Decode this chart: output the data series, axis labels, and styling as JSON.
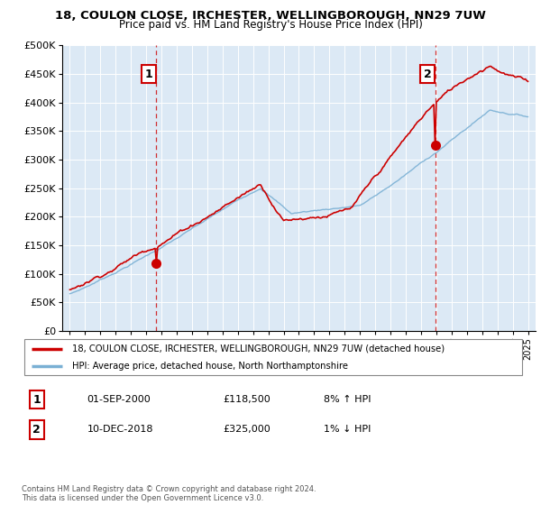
{
  "title_line1": "18, COULON CLOSE, IRCHESTER, WELLINGBOROUGH, NN29 7UW",
  "title_line2": "Price paid vs. HM Land Registry's House Price Index (HPI)",
  "ylabel_ticks": [
    "£0",
    "£50K",
    "£100K",
    "£150K",
    "£200K",
    "£250K",
    "£300K",
    "£350K",
    "£400K",
    "£450K",
    "£500K"
  ],
  "ytick_values": [
    0,
    50000,
    100000,
    150000,
    200000,
    250000,
    300000,
    350000,
    400000,
    450000,
    500000
  ],
  "ylim": [
    0,
    500000
  ],
  "xlim_start": 1994.5,
  "xlim_end": 2025.5,
  "sale1_x": 2000.67,
  "sale1_y": 118500,
  "sale1_label": "1",
  "sale2_x": 2018.92,
  "sale2_y": 325000,
  "sale2_label": "2",
  "legend_line1": "18, COULON CLOSE, IRCHESTER, WELLINGBOROUGH, NN29 7UW (detached house)",
  "legend_line2": "HPI: Average price, detached house, North Northamptonshire",
  "annotation1_date": "01-SEP-2000",
  "annotation1_price": "£118,500",
  "annotation1_hpi": "8% ↑ HPI",
  "annotation2_date": "10-DEC-2018",
  "annotation2_price": "£325,000",
  "annotation2_hpi": "1% ↓ HPI",
  "footer": "Contains HM Land Registry data © Crown copyright and database right 2024.\nThis data is licensed under the Open Government Licence v3.0.",
  "line_color_property": "#cc0000",
  "line_color_hpi": "#7ab0d4",
  "plot_bg_color": "#dce9f5",
  "vline_color": "#cc0000",
  "grid_color": "#ffffff",
  "marker_fill": "#cc0000"
}
